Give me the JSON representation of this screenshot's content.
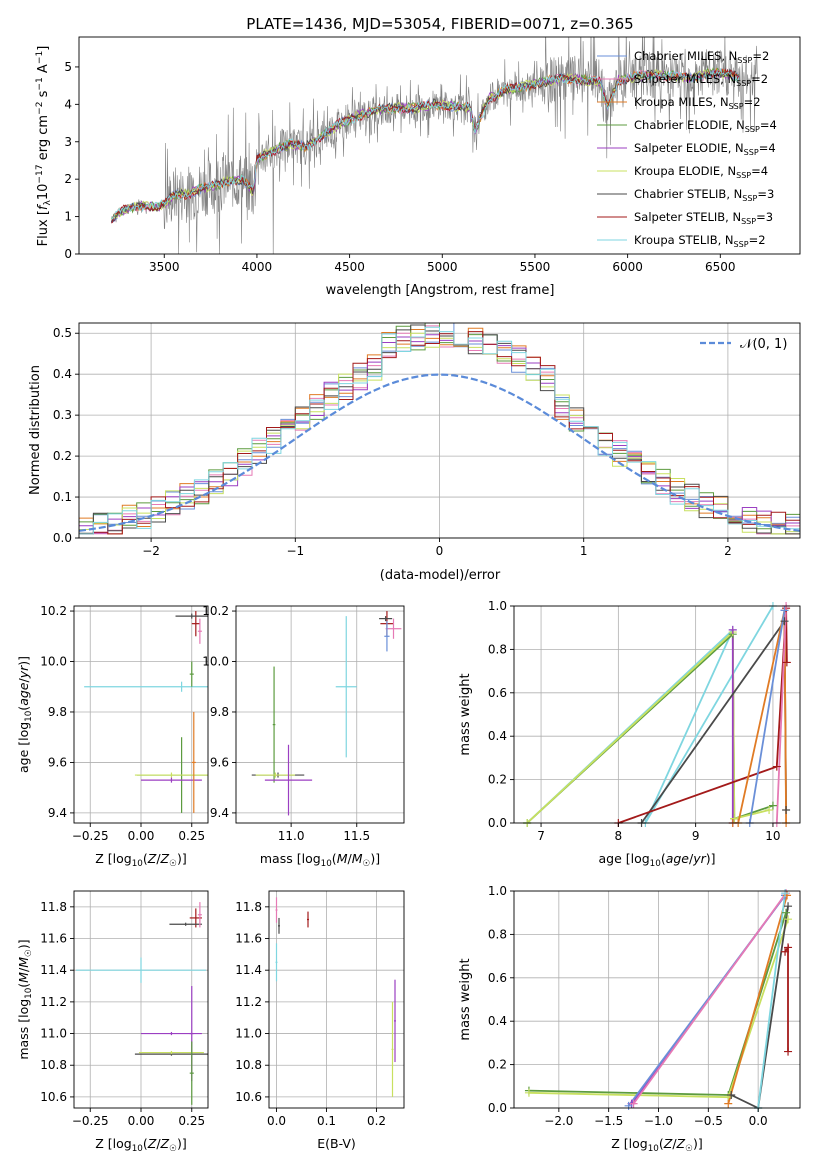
{
  "chart_data": [
    {
      "id": "spectrum",
      "type": "line",
      "title": "PLATE=1436, MJD=53054, FIBERID=0071, z=0.365",
      "xlabel": "wavelength [Angstrom, rest frame]",
      "ylabel": "Flux [f_λ 10^-17 erg cm^-2 s^-1 A^-1]",
      "xlim": [
        3040,
        6930
      ],
      "ylim": [
        0,
        5.8
      ],
      "xticks": [
        3500,
        4000,
        4500,
        5000,
        5500,
        6000,
        6500
      ],
      "yticks": [
        0,
        1,
        2,
        3,
        4,
        5
      ],
      "legend_position": "top-right",
      "data_color": "#808080",
      "model_anchors_x": [
        3215,
        3260,
        3330,
        3400,
        3470,
        3500,
        3560,
        3620,
        3700,
        3780,
        3850,
        3920,
        3980,
        4000,
        4080,
        4180,
        4260,
        4350,
        4450,
        4550,
        4650,
        4750,
        4860,
        4950,
        5050,
        5150,
        5175,
        5250,
        5350,
        5450,
        5550,
        5650,
        5750,
        5850,
        5890,
        5950,
        6050,
        6150,
        6250,
        6350,
        6450,
        6550,
        6600
      ],
      "model_anchors_y": [
        0.9,
        1.12,
        1.25,
        1.3,
        1.25,
        1.35,
        1.6,
        1.6,
        1.75,
        1.85,
        1.95,
        2.0,
        1.65,
        2.55,
        2.75,
        2.95,
        2.85,
        3.15,
        3.5,
        3.7,
        3.85,
        3.9,
        3.9,
        4.0,
        3.95,
        3.9,
        3.3,
        4.15,
        4.4,
        4.5,
        4.6,
        4.7,
        4.65,
        4.6,
        3.9,
        4.65,
        4.75,
        4.8,
        4.75,
        4.7,
        4.85,
        4.8,
        4.7
      ],
      "series": [
        {
          "name": "Chabrier MILES, N_SSP=2",
          "color": "#6a8fd8"
        },
        {
          "name": "Salpeter MILES, N_SSP=2",
          "color": "#e67ab5"
        },
        {
          "name": "Kroupa MILES, N_SSP=2",
          "color": "#e07b25"
        },
        {
          "name": "Chabrier ELODIE, N_SSP=4",
          "color": "#5c9b3f"
        },
        {
          "name": "Salpeter ELODIE, N_SSP=4",
          "color": "#9b3fc2"
        },
        {
          "name": "Kroupa ELODIE, N_SSP=4",
          "color": "#c8e060"
        },
        {
          "name": "Chabrier STELIB, N_SSP=3",
          "color": "#4a4a4a"
        },
        {
          "name": "Salpeter STELIB, N_SSP=3",
          "color": "#a31a1a"
        },
        {
          "name": "Kroupa STELIB, N_SSP=2",
          "color": "#7fd6e0"
        }
      ]
    },
    {
      "id": "residuals",
      "type": "histogram",
      "xlabel": "(data-model)/error",
      "ylabel": "Normed distribution",
      "xlim": [
        -2.5,
        2.5
      ],
      "ylim": [
        0,
        0.525
      ],
      "xticks": [
        -2,
        -1,
        0,
        1,
        2
      ],
      "yticks": [
        0.0,
        0.1,
        0.2,
        0.3,
        0.4,
        0.5
      ],
      "legend_position": "top-right",
      "reference_curve": {
        "name": "𝒩(0, 1)",
        "color": "#5b8bd9",
        "mean": 0,
        "sigma": 1
      },
      "bin_width": 0.1,
      "series_colors": [
        "#6a8fd8",
        "#e67ab5",
        "#e07b25",
        "#5c9b3f",
        "#9b3fc2",
        "#c8e060",
        "#4a4a4a",
        "#a31a1a",
        "#7fd6e0"
      ]
    },
    {
      "id": "age-vs-Z",
      "type": "errorbar",
      "xlabel": "Z [log10(Z/Z☉)]",
      "ylabel": "age  [log10(age/yr)]",
      "xlim": [
        -0.33,
        0.33
      ],
      "ylim": [
        9.36,
        10.22
      ],
      "xticks": [
        -0.25,
        0.0,
        0.25
      ],
      "yticks": [
        9.4,
        9.6,
        9.8,
        10.0,
        10.2
      ],
      "points": [
        {
          "x": 0.27,
          "y": 10.15,
          "xerr": 0.02,
          "yerr": 0.05,
          "color": "#a31a1a"
        },
        {
          "x": 0.25,
          "y": 10.18,
          "xerr": 0.08,
          "yerr": 0.01,
          "color": "#4a4a4a"
        },
        {
          "x": 0.29,
          "y": 10.12,
          "xerr": 0.01,
          "yerr": 0.05,
          "color": "#e67ab5"
        },
        {
          "x": 0.2,
          "y": 9.9,
          "xerr": 0.48,
          "yerr": 0.02,
          "color": "#7fd6e0"
        },
        {
          "x": 0.25,
          "y": 9.95,
          "xerr": 0.01,
          "yerr": 0.05,
          "color": "#5c9b3f"
        },
        {
          "x": 0.2,
          "y": 9.55,
          "xerr": 0.22,
          "yerr": 0.15,
          "color": "#5c9b3f"
        },
        {
          "x": 0.15,
          "y": 9.55,
          "xerr": 0.18,
          "yerr": 0.01,
          "color": "#c8e060"
        },
        {
          "x": 0.15,
          "y": 9.53,
          "xerr": 0.15,
          "yerr": 0.01,
          "color": "#9b3fc2"
        },
        {
          "x": 0.26,
          "y": 9.6,
          "xerr": 0.01,
          "yerr": 0.2,
          "color": "#e07b25"
        }
      ]
    },
    {
      "id": "age-vs-mass",
      "type": "errorbar",
      "xlabel": "mass [log10(M/M☉)]",
      "ylabel": "",
      "xlim": [
        10.58,
        11.86
      ],
      "ylim": [
        9.36,
        10.22
      ],
      "xticks": [
        11.0,
        11.5
      ],
      "yticks": [
        9.4,
        9.6,
        9.8,
        10.0,
        10.2
      ],
      "points": [
        {
          "x": 11.73,
          "y": 10.15,
          "xerr": 0.05,
          "yerr": 0.05,
          "color": "#a31a1a"
        },
        {
          "x": 11.72,
          "y": 10.17,
          "xerr": 0.05,
          "yerr": 0.01,
          "color": "#4a4a4a"
        },
        {
          "x": 11.78,
          "y": 10.13,
          "xerr": 0.06,
          "yerr": 0.04,
          "color": "#e67ab5"
        },
        {
          "x": 11.73,
          "y": 10.1,
          "xerr": 0.02,
          "yerr": 0.06,
          "color": "#6a8fd8"
        },
        {
          "x": 11.42,
          "y": 9.9,
          "xerr": 0.08,
          "yerr": 0.28,
          "color": "#7fd6e0"
        },
        {
          "x": 10.87,
          "y": 9.75,
          "xerr": 0.01,
          "yerr": 0.23,
          "color": "#5c9b3f"
        },
        {
          "x": 10.9,
          "y": 9.55,
          "xerr": 0.2,
          "yerr": 0.01,
          "color": "#4a4a4a"
        },
        {
          "x": 10.88,
          "y": 9.55,
          "xerr": 0.15,
          "yerr": 0.01,
          "color": "#c8e060"
        },
        {
          "x": 10.98,
          "y": 9.53,
          "xerr": 0.18,
          "yerr": 0.14,
          "color": "#9b3fc2"
        }
      ]
    },
    {
      "id": "mass-weight-vs-age",
      "type": "line",
      "xlabel": "age  [log10(age/yr)]",
      "ylabel": "mass weight",
      "xlim": [
        6.65,
        10.35
      ],
      "ylim": [
        0,
        1
      ],
      "xticks": [
        7,
        8,
        9,
        10
      ],
      "yticks": [
        0.0,
        0.2,
        0.4,
        0.6,
        0.8,
        1.0
      ],
      "series": [
        {
          "color": "#7fd6e0",
          "x": [
            6.82,
            9.48,
            8.35,
            10.0
          ],
          "y": [
            0.0,
            0.89,
            0.0,
            1.0
          ]
        },
        {
          "color": "#5c9b3f",
          "x": [
            6.82,
            9.48,
            9.5,
            10.0
          ],
          "y": [
            0.0,
            0.87,
            0.02,
            0.08
          ]
        },
        {
          "color": "#c8e060",
          "x": [
            6.82,
            9.48,
            9.5,
            9.95
          ],
          "y": [
            0.0,
            0.88,
            0.02,
            0.06
          ]
        },
        {
          "color": "#9b3fc2",
          "x": [
            9.48,
            9.48
          ],
          "y": [
            0.89,
            0.0
          ]
        },
        {
          "color": "#4a4a4a",
          "x": [
            8.3,
            10.15,
            10.17
          ],
          "y": [
            0.0,
            0.93,
            0.06
          ]
        },
        {
          "color": "#a31a1a",
          "x": [
            8.0,
            10.05,
            10.17,
            10.18
          ],
          "y": [
            0.0,
            0.26,
            0.99,
            0.74
          ]
        },
        {
          "color": "#e07b25",
          "x": [
            9.48,
            9.55,
            10.15,
            10.17
          ],
          "y": [
            0.0,
            0.0,
            0.98,
            0.0
          ]
        },
        {
          "color": "#6a8fd8",
          "x": [
            9.7,
            10.15
          ],
          "y": [
            0.0,
            0.98
          ]
        },
        {
          "color": "#e67ab5",
          "x": [
            10.05,
            10.17
          ],
          "y": [
            0.0,
            1.0
          ]
        }
      ]
    },
    {
      "id": "mass-vs-Z",
      "type": "errorbar",
      "xlabel": "Z [log10(Z/Z☉)]",
      "ylabel": "mass [log10(M/M☉)]",
      "xlim": [
        -0.33,
        0.33
      ],
      "ylim": [
        10.53,
        11.9
      ],
      "xticks": [
        -0.25,
        0.0,
        0.25
      ],
      "yticks": [
        10.6,
        10.8,
        11.0,
        11.2,
        11.4,
        11.6,
        11.8
      ],
      "points": [
        {
          "x": 0.27,
          "y": 11.73,
          "xerr": 0.03,
          "yerr": 0.06,
          "color": "#a31a1a"
        },
        {
          "x": 0.22,
          "y": 11.69,
          "xerr": 0.08,
          "yerr": 0.01,
          "color": "#4a4a4a"
        },
        {
          "x": 0.29,
          "y": 11.75,
          "xerr": 0.01,
          "yerr": 0.08,
          "color": "#e67ab5"
        },
        {
          "x": 0.0,
          "y": 11.4,
          "xerr": 0.32,
          "yerr": 0.08,
          "color": "#7fd6e0"
        },
        {
          "x": 0.25,
          "y": 11.0,
          "xerr": 0.01,
          "yerr": 0.3,
          "color": "#9b3fc2"
        },
        {
          "x": 0.15,
          "y": 11.0,
          "xerr": 0.15,
          "yerr": 0.01,
          "color": "#9b3fc2"
        },
        {
          "x": 0.15,
          "y": 10.87,
          "xerr": 0.18,
          "yerr": 0.01,
          "color": "#4a4a4a"
        },
        {
          "x": 0.15,
          "y": 10.88,
          "xerr": 0.16,
          "yerr": 0.01,
          "color": "#c8e060"
        },
        {
          "x": 0.25,
          "y": 10.75,
          "xerr": 0.01,
          "yerr": 0.2,
          "color": "#5c9b3f"
        }
      ]
    },
    {
      "id": "mass-vs-EBV",
      "type": "errorbar",
      "xlabel": "E(B-V)",
      "ylabel": "",
      "xlim": [
        -0.015,
        0.255
      ],
      "ylim": [
        10.53,
        11.9
      ],
      "xticks": [
        0.0,
        0.1,
        0.2
      ],
      "yticks": [
        10.6,
        10.8,
        11.0,
        11.2,
        11.4,
        11.6,
        11.8
      ],
      "points": [
        {
          "x": 0.0,
          "y": 11.78,
          "xerr": 0.002,
          "yerr": 0.08,
          "color": "#e67ab5"
        },
        {
          "x": 0.005,
          "y": 11.68,
          "xerr": 0.002,
          "yerr": 0.05,
          "color": "#4a4a4a"
        },
        {
          "x": 0.0,
          "y": 11.45,
          "xerr": 0.002,
          "yerr": 0.12,
          "color": "#7fd6e0"
        },
        {
          "x": 0.063,
          "y": 11.72,
          "xerr": 0.002,
          "yerr": 0.05,
          "color": "#a31a1a"
        },
        {
          "x": 0.237,
          "y": 11.08,
          "xerr": 0.002,
          "yerr": 0.26,
          "color": "#9b3fc2"
        },
        {
          "x": 0.232,
          "y": 10.9,
          "xerr": 0.002,
          "yerr": 0.3,
          "color": "#c8e060"
        }
      ]
    },
    {
      "id": "mass-weight-vs-Z",
      "type": "line",
      "xlabel": "Z [log10(Z/Z☉)]",
      "ylabel": "mass weight",
      "xlim": [
        -2.45,
        0.42
      ],
      "ylim": [
        0,
        1
      ],
      "xticks": [
        -2.0,
        -1.5,
        -1.0,
        -0.5,
        0.0
      ],
      "yticks": [
        0.0,
        0.2,
        0.4,
        0.6,
        0.8,
        1.0
      ],
      "series": [
        {
          "color": "#5c9b3f",
          "x": [
            -2.3,
            -0.3,
            0.28
          ],
          "y": [
            0.08,
            0.06,
            0.9
          ]
        },
        {
          "color": "#c8e060",
          "x": [
            -2.3,
            -0.3,
            0.3
          ],
          "y": [
            0.07,
            0.05,
            0.87
          ]
        },
        {
          "color": "#9b3fc2",
          "x": [
            -1.27,
            0.27
          ],
          "y": [
            0.02,
            0.98
          ]
        },
        {
          "color": "#6a8fd8",
          "x": [
            -1.3,
            0.27
          ],
          "y": [
            0.01,
            0.98
          ]
        },
        {
          "color": "#e67ab5",
          "x": [
            -1.25,
            0.28
          ],
          "y": [
            0.02,
            0.99
          ]
        },
        {
          "color": "#e07b25",
          "x": [
            -0.3,
            0.29
          ],
          "y": [
            0.02,
            0.98
          ]
        },
        {
          "color": "#4a4a4a",
          "x": [
            -0.27,
            0.0,
            0.3
          ],
          "y": [
            0.06,
            0.0,
            0.93
          ]
        },
        {
          "color": "#7fd6e0",
          "x": [
            0.0,
            0.27
          ],
          "y": [
            0.0,
            0.99
          ]
        },
        {
          "color": "#a31a1a",
          "x": [
            0.27,
            0.3,
            0.3
          ],
          "y": [
            0.72,
            0.74,
            0.26
          ]
        }
      ]
    }
  ]
}
